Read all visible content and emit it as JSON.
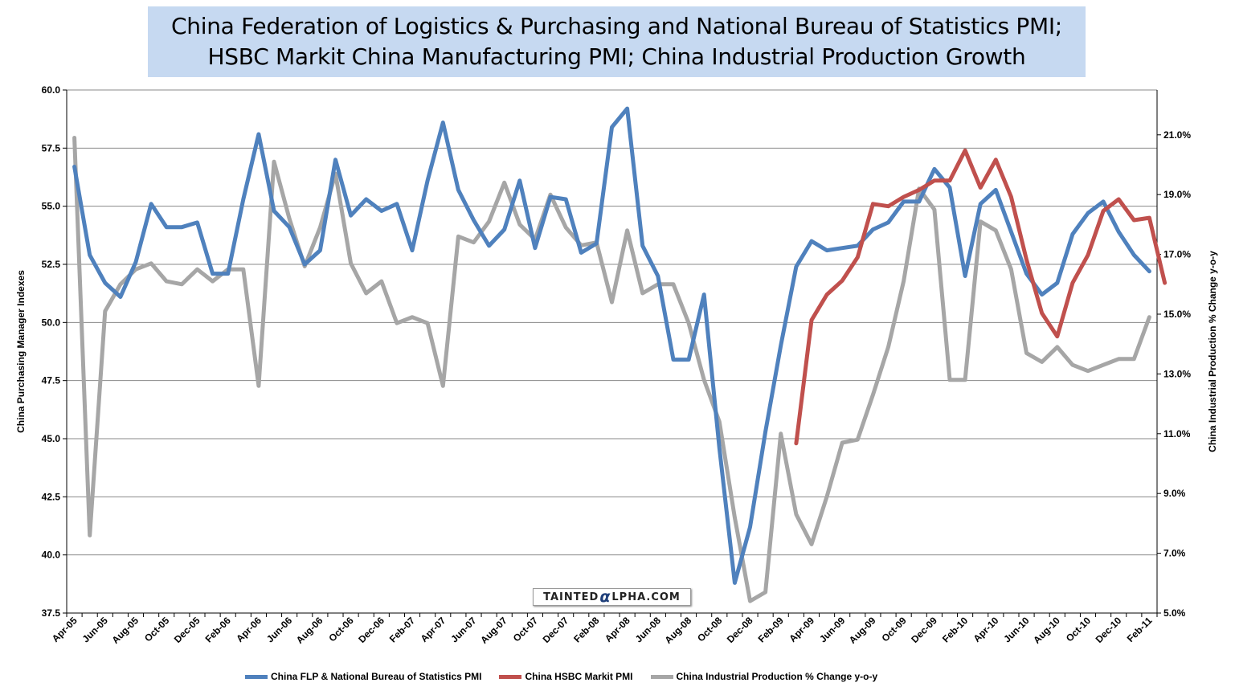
{
  "title": {
    "line1": "China Federation of Logistics & Purchasing and National Bureau of Statistics PMI;",
    "line2": "HSBC Markit China Manufacturing PMI; China Industrial Production Growth"
  },
  "watermark": {
    "pre": "TAINTED",
    "mark": "α",
    "post": "LPHA.COM"
  },
  "chart_data": {
    "type": "line",
    "ylabel_left": "China Purchasing Manager Indexes",
    "ylabel_right": "China Industrial Production % Change y-o-y",
    "ylim_left": [
      37.5,
      60.0
    ],
    "ylim_right": [
      5.0,
      22.5
    ],
    "left_ticks": [
      "37.5",
      "40.0",
      "42.5",
      "45.0",
      "47.5",
      "50.0",
      "52.5",
      "55.0",
      "57.5",
      "60.0"
    ],
    "right_ticks": [
      "5.0%",
      "7.0%",
      "9.0%",
      "11.0%",
      "13.0%",
      "15.0%",
      "17.0%",
      "19.0%",
      "21.0%"
    ],
    "x_tick_labels": [
      "Apr-05",
      "Jun-05",
      "Aug-05",
      "Oct-05",
      "Dec-05",
      "Feb-06",
      "Apr-06",
      "Jun-06",
      "Aug-06",
      "Oct-06",
      "Dec-06",
      "Feb-07",
      "Apr-07",
      "Jun-07",
      "Aug-07",
      "Oct-07",
      "Dec-07",
      "Feb-08",
      "Apr-08",
      "Jun-08",
      "Aug-08",
      "Oct-08",
      "Dec-08",
      "Feb-09",
      "Apr-09",
      "Jun-09",
      "Aug-09",
      "Oct-09",
      "Dec-09",
      "Feb-10",
      "Apr-10",
      "Jun-10",
      "Aug-10",
      "Oct-10",
      "Dec-10",
      "Feb-11"
    ],
    "grid": true,
    "legend_position": "bottom",
    "series": [
      {
        "name": "China FLP & National Bureau of Statistics PMI",
        "color": "#4f81bd",
        "axis": "left",
        "start": "Apr-05",
        "values": [
          56.7,
          52.9,
          51.7,
          51.1,
          52.6,
          55.1,
          54.1,
          54.1,
          54.3,
          52.1,
          52.1,
          55.3,
          58.1,
          54.8,
          54.1,
          52.5,
          53.1,
          57.0,
          54.6,
          55.3,
          54.8,
          55.1,
          53.1,
          56.1,
          58.6,
          55.7,
          54.4,
          53.3,
          54.0,
          56.1,
          53.2,
          55.4,
          55.3,
          53.0,
          53.4,
          58.4,
          59.2,
          53.3,
          52.0,
          48.4,
          48.4,
          51.2,
          44.6,
          38.8,
          41.2,
          45.3,
          49.0,
          52.4,
          53.5,
          53.1,
          53.2,
          53.3,
          54.0,
          54.3,
          55.2,
          55.2,
          56.6,
          55.8,
          52.0,
          55.1,
          55.7,
          53.9,
          52.1,
          51.2,
          51.7,
          53.8,
          54.7,
          55.2,
          53.9,
          52.9,
          52.2
        ]
      },
      {
        "name": "China HSBC  Markit PMI",
        "color": "#c0504d",
        "axis": "left",
        "start": "Mar-09",
        "values": [
          44.8,
          50.1,
          51.2,
          51.8,
          52.8,
          55.1,
          55.0,
          55.4,
          55.7,
          56.1,
          56.1,
          57.4,
          55.8,
          57.0,
          55.4,
          52.7,
          50.4,
          49.4,
          51.7,
          52.9,
          54.8,
          55.3,
          54.4,
          54.5,
          51.7
        ]
      },
      {
        "name": "China Industrial Production % Change y-o-y",
        "color": "#a6a6a6",
        "axis": "right",
        "start": "Apr-05",
        "values": [
          20.9,
          7.6,
          15.1,
          16.0,
          16.5,
          16.7,
          16.1,
          16.0,
          16.5,
          16.1,
          16.5,
          16.5,
          12.6,
          20.1,
          18.2,
          16.6,
          17.9,
          19.7,
          16.7,
          15.7,
          16.1,
          14.7,
          14.9,
          14.7,
          12.6,
          17.6,
          17.4,
          18.1,
          19.4,
          18.0,
          17.5,
          19.0,
          17.9,
          17.3,
          17.4,
          15.4,
          17.8,
          15.7,
          16.0,
          16.0,
          14.7,
          12.8,
          11.4,
          8.2,
          5.4,
          5.7,
          11.0,
          8.3,
          7.3,
          8.9,
          10.7,
          10.8,
          12.3,
          13.9,
          16.1,
          19.2,
          18.5,
          12.8,
          12.8,
          18.1,
          17.8,
          16.5,
          13.7,
          13.4,
          13.9,
          13.3,
          13.1,
          13.3,
          13.5,
          13.5,
          14.9
        ]
      }
    ]
  }
}
